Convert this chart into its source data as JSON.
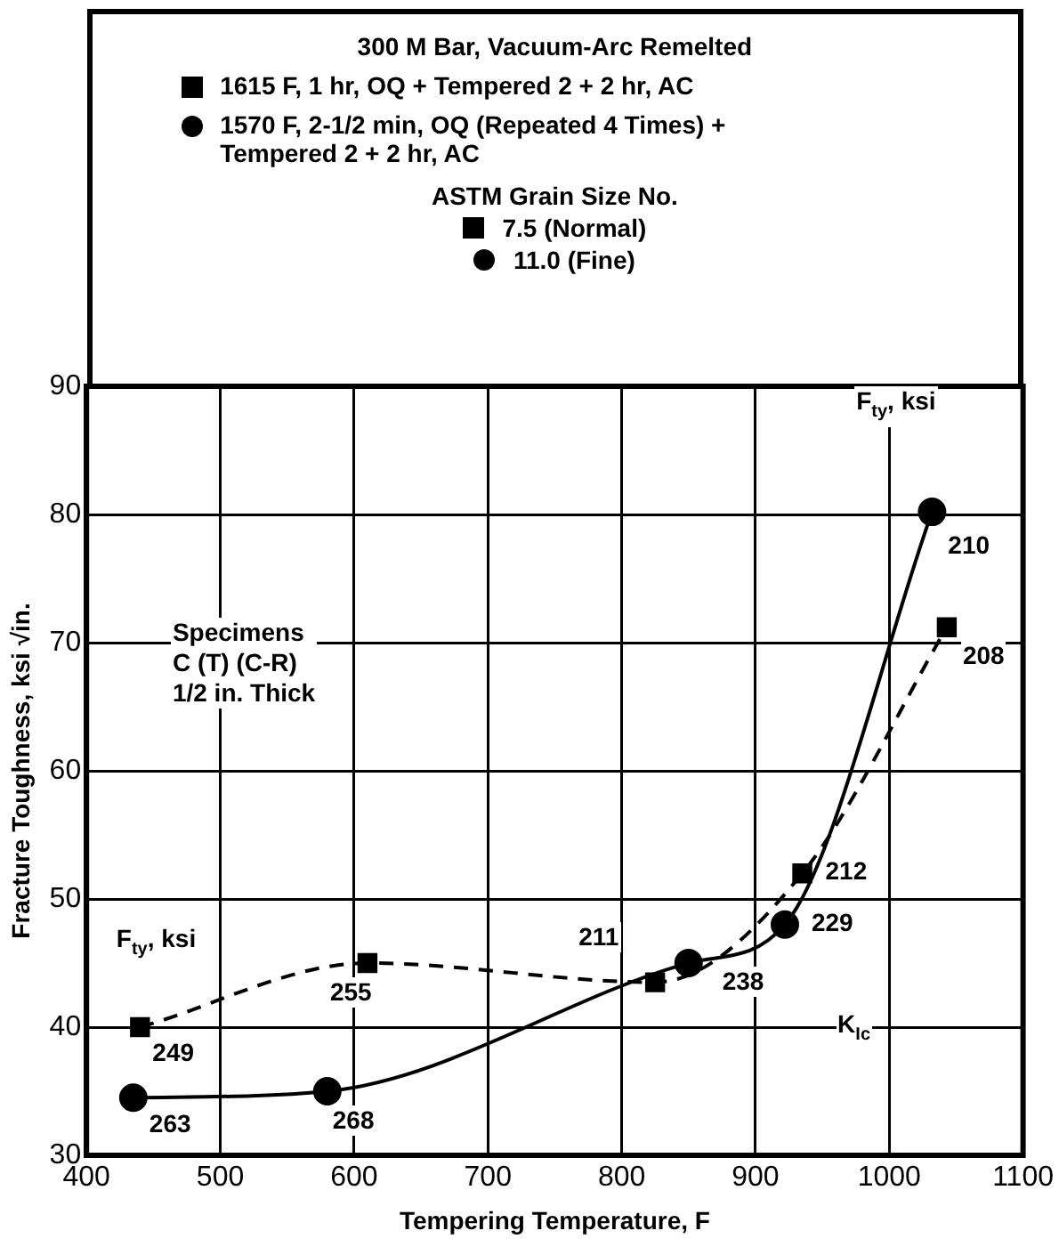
{
  "chart_data": {
    "type": "line",
    "legend_title": "300 M Bar, Vacuum-Arc Remelted",
    "xlabel": "Tempering Temperature, F",
    "ylabel": "Fracture Toughness, ksi √in.",
    "xlim": [
      400,
      1100
    ],
    "xticks": [
      400,
      500,
      600,
      700,
      800,
      900,
      1000,
      1100
    ],
    "ylim": [
      30,
      90
    ],
    "yticks": [
      30,
      40,
      50,
      60,
      70,
      80,
      90
    ],
    "grid": true,
    "legend": "top",
    "series": [
      {
        "name": "1615 F, 1 hr, OQ + Tempered 2 + 2 hr, AC",
        "color": "#000000",
        "marker": "square",
        "line_style": "dashed",
        "x": [
          440,
          610,
          825,
          935,
          1043
        ],
        "values": [
          40,
          45,
          43.5,
          52,
          71.2
        ]
      },
      {
        "name": "1570 F, 2-1/2 min, OQ (Repeated 4 Times) + Tempered 2 + 2 hr, AC",
        "color": "#000000",
        "marker": "circle",
        "line_style": "solid",
        "x": [
          435,
          580,
          850,
          922,
          1032
        ],
        "values": [
          34.5,
          35,
          45,
          48,
          80.2
        ]
      }
    ],
    "annotations": [
      "ASTM Grain Size No.",
      "7.5 (Normal)",
      "11.0 (Fine)",
      "Specimens\nC (T) (C-R)\n1/2 in. Thick",
      "F$_{ty}$, ksi",
      "F$_{ty}$, ksi",
      "K$_{Ic}$",
      {
        "text": "249",
        "x": 440,
        "y": 40
      },
      {
        "text": "255",
        "x": 610,
        "y": 45
      },
      {
        "text": "211",
        "x": 825,
        "y": 43.5
      },
      {
        "text": "212",
        "x": 935,
        "y": 52
      },
      {
        "text": "208",
        "x": 1043,
        "y": 71.2
      },
      {
        "text": "263",
        "x": 435,
        "y": 34.5
      },
      {
        "text": "268",
        "x": 580,
        "y": 35
      },
      {
        "text": "238",
        "x": 850,
        "y": 45
      },
      {
        "text": "229",
        "x": 922,
        "y": 48
      },
      {
        "text": "210",
        "x": 1032,
        "y": 80.2
      }
    ]
  }
}
